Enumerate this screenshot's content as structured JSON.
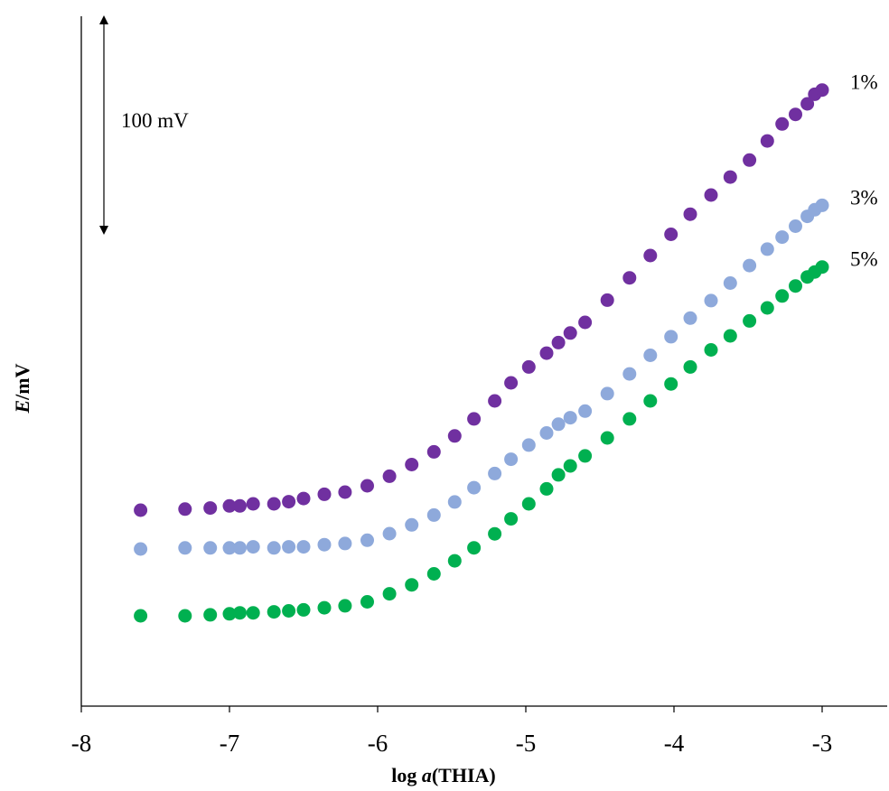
{
  "chart_data": {
    "type": "scatter",
    "title": "",
    "xlabel": {
      "prefix": "log ",
      "italic": "a",
      "suffix": "(THIA)"
    },
    "ylabel": {
      "italic": "E",
      "suffix": "/mV"
    },
    "xlim": [
      -8,
      -2.5
    ],
    "x_ticks": [
      -8,
      -7,
      -6,
      -5,
      -4,
      -3
    ],
    "x_tick_labels": [
      "-8",
      "-7",
      "-6",
      "-5",
      "-4",
      "-3"
    ],
    "grid": false,
    "scale_bar": {
      "label": "100 mV",
      "value_mV": 100
    },
    "x": [
      -7.6,
      -7.3,
      -7.13,
      -7.0,
      -6.93,
      -6.84,
      -6.7,
      -6.6,
      -6.5,
      -6.36,
      -6.22,
      -6.07,
      -5.92,
      -5.77,
      -5.62,
      -5.48,
      -5.35,
      -5.21,
      -5.1,
      -4.98,
      -4.86,
      -4.78,
      -4.7,
      -4.6,
      -4.45,
      -4.3,
      -4.16,
      -4.02,
      -3.89,
      -3.75,
      -3.62,
      -3.49,
      -3.37,
      -3.27,
      -3.18,
      -3.1,
      -3.05,
      -3.0
    ],
    "series": [
      {
        "name": "1%",
        "color": "#7030a0",
        "values": [
          0,
          1,
          2,
          4,
          4,
          6,
          6,
          8,
          11,
          15,
          17,
          23,
          32,
          43,
          55,
          70,
          86,
          103,
          120,
          135,
          148,
          158,
          167,
          177,
          198,
          219,
          240,
          260,
          279,
          297,
          314,
          330,
          348,
          364,
          373,
          383,
          392,
          396
        ]
      },
      {
        "name": "3%",
        "color": "#8ea9db",
        "values": [
          0,
          1,
          1,
          1,
          1,
          2,
          1,
          2,
          2,
          4,
          5,
          8,
          14,
          22,
          31,
          43,
          56,
          69,
          82,
          95,
          106,
          114,
          120,
          126,
          142,
          160,
          177,
          194,
          211,
          227,
          243,
          259,
          274,
          285,
          295,
          304,
          310,
          314
        ]
      },
      {
        "name": "5%",
        "color": "#00b050",
        "values": [
          0,
          0,
          1,
          2,
          3,
          3,
          4,
          5,
          6,
          8,
          10,
          14,
          22,
          31,
          42,
          55,
          68,
          82,
          97,
          112,
          127,
          141,
          150,
          160,
          178,
          197,
          215,
          232,
          249,
          266,
          280,
          295,
          308,
          320,
          330,
          339,
          344,
          349
        ]
      }
    ]
  }
}
